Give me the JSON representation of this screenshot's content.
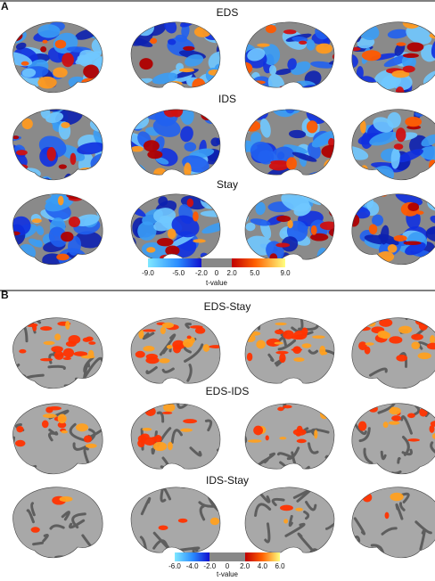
{
  "panel_a": {
    "label": "A",
    "rows": [
      "EDS",
      "IDS",
      "Stay"
    ],
    "colorbar": {
      "ticks": [
        "-9.0",
        "-5.0",
        "-2.0",
        "0",
        "2.0",
        "5.0",
        "9.0"
      ],
      "label": "t-value"
    }
  },
  "panel_b": {
    "label": "B",
    "rows": [
      "EDS-Stay",
      "EDS-IDS",
      "IDS-Stay"
    ],
    "colorbar": {
      "ticks": [
        "-6.0",
        "-4.0",
        "-2.0",
        "0",
        "2.0",
        "4.0",
        "6.0"
      ],
      "label": "t-value"
    }
  }
}
